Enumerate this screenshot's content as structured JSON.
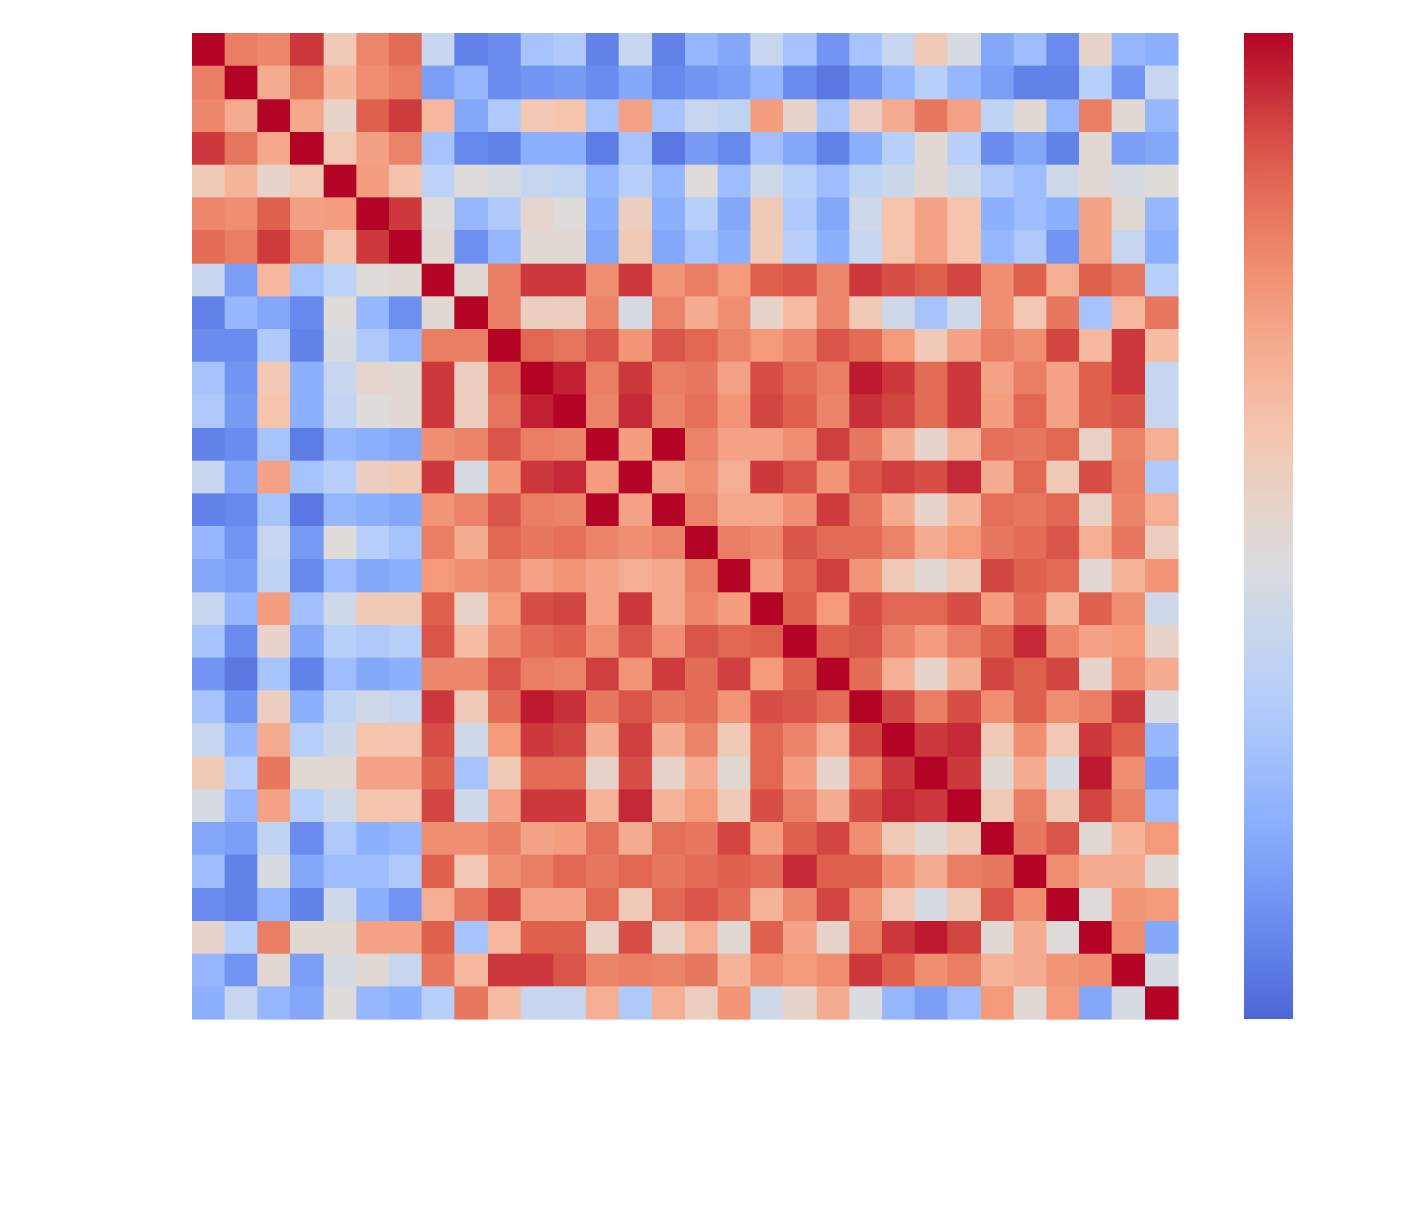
{
  "chart_data": {
    "type": "heatmap",
    "title": "",
    "xlabel": "",
    "ylabel": "",
    "n": 30,
    "x_tick_labels": [],
    "y_tick_labels": [],
    "color_range": [
      -1,
      1
    ],
    "colormap": "coolwarm",
    "colorbar": {
      "visible": true,
      "placement": "right",
      "tick_labels": []
    },
    "cells": [
      [
        1.0,
        0.62,
        0.58,
        0.86,
        0.2,
        0.58,
        0.7,
        -0.15,
        -0.75,
        -0.7,
        -0.35,
        -0.3,
        -0.75,
        -0.15,
        -0.75,
        -0.45,
        -0.55,
        -0.15,
        -0.35,
        -0.65,
        -0.35,
        -0.15,
        0.2,
        -0.05,
        -0.55,
        -0.4,
        -0.7,
        0.1,
        -0.45,
        -0.5
      ],
      [
        0.62,
        1.0,
        0.4,
        0.66,
        0.34,
        0.55,
        0.62,
        -0.6,
        -0.45,
        -0.7,
        -0.65,
        -0.62,
        -0.7,
        -0.55,
        -0.72,
        -0.65,
        -0.6,
        -0.45,
        -0.7,
        -0.8,
        -0.65,
        -0.45,
        -0.25,
        -0.45,
        -0.6,
        -0.75,
        -0.75,
        -0.25,
        -0.65,
        -0.15
      ],
      [
        0.58,
        0.4,
        1.0,
        0.42,
        0.1,
        0.75,
        0.85,
        0.32,
        -0.55,
        -0.3,
        0.22,
        0.25,
        -0.35,
        0.45,
        -0.35,
        -0.15,
        -0.2,
        0.48,
        0.1,
        -0.35,
        0.15,
        0.4,
        0.65,
        0.45,
        -0.2,
        0.05,
        -0.45,
        0.62,
        0.05,
        -0.45
      ],
      [
        0.86,
        0.66,
        0.42,
        1.0,
        0.22,
        0.46,
        0.6,
        -0.35,
        -0.72,
        -0.75,
        -0.5,
        -0.5,
        -0.78,
        -0.35,
        -0.8,
        -0.62,
        -0.72,
        -0.38,
        -0.55,
        -0.75,
        -0.5,
        -0.25,
        0.05,
        -0.25,
        -0.7,
        -0.55,
        -0.75,
        0.05,
        -0.6,
        -0.55
      ],
      [
        0.2,
        0.34,
        0.1,
        0.22,
        1.0,
        0.48,
        0.26,
        -0.22,
        0.02,
        -0.05,
        -0.15,
        -0.18,
        -0.45,
        -0.25,
        -0.45,
        0.02,
        -0.4,
        -0.1,
        -0.25,
        -0.4,
        -0.2,
        -0.12,
        0.05,
        -0.1,
        -0.3,
        -0.4,
        -0.1,
        0.05,
        -0.05,
        0.02
      ],
      [
        0.58,
        0.55,
        0.75,
        0.46,
        0.48,
        1.0,
        0.86,
        0.02,
        -0.45,
        -0.3,
        0.08,
        0.02,
        -0.5,
        0.15,
        -0.5,
        -0.25,
        -0.55,
        0.2,
        -0.3,
        -0.55,
        -0.1,
        0.25,
        0.45,
        0.25,
        -0.5,
        -0.4,
        -0.5,
        0.45,
        0.05,
        -0.45
      ],
      [
        0.7,
        0.62,
        0.85,
        0.6,
        0.26,
        0.86,
        1.0,
        0.05,
        -0.68,
        -0.45,
        0.05,
        0.05,
        -0.55,
        0.2,
        -0.55,
        -0.35,
        -0.5,
        0.2,
        -0.25,
        -0.5,
        -0.15,
        0.25,
        0.45,
        0.25,
        -0.45,
        -0.3,
        -0.65,
        0.45,
        -0.15,
        -0.5
      ],
      [
        -0.15,
        -0.6,
        0.32,
        -0.35,
        -0.22,
        0.02,
        0.05,
        1.0,
        0.05,
        0.62,
        0.86,
        0.86,
        0.55,
        0.86,
        0.52,
        0.62,
        0.5,
        0.75,
        0.78,
        0.58,
        0.86,
        0.8,
        0.75,
        0.82,
        0.55,
        0.75,
        0.38,
        0.75,
        0.65,
        -0.25
      ],
      [
        -0.75,
        -0.45,
        -0.55,
        -0.72,
        0.02,
        -0.45,
        -0.68,
        0.05,
        1.0,
        0.62,
        0.15,
        0.15,
        0.6,
        -0.05,
        0.6,
        0.4,
        0.55,
        0.1,
        0.3,
        0.58,
        0.2,
        -0.1,
        -0.35,
        -0.1,
        0.55,
        0.22,
        0.65,
        -0.35,
        0.32,
        0.65
      ],
      [
        -0.7,
        -0.7,
        -0.3,
        -0.75,
        -0.05,
        -0.3,
        -0.45,
        0.62,
        0.62,
        1.0,
        0.72,
        0.66,
        0.78,
        0.52,
        0.78,
        0.72,
        0.6,
        0.5,
        0.58,
        0.78,
        0.7,
        0.5,
        0.2,
        0.45,
        0.62,
        0.55,
        0.82,
        0.32,
        0.86,
        0.3
      ],
      [
        -0.35,
        -0.65,
        0.22,
        -0.5,
        -0.15,
        0.08,
        0.05,
        0.86,
        0.15,
        0.72,
        1.0,
        0.92,
        0.62,
        0.86,
        0.62,
        0.65,
        0.45,
        0.8,
        0.7,
        0.62,
        0.94,
        0.86,
        0.7,
        0.86,
        0.45,
        0.62,
        0.45,
        0.75,
        0.86,
        -0.15
      ],
      [
        -0.3,
        -0.62,
        0.25,
        -0.5,
        -0.18,
        0.02,
        0.05,
        0.86,
        0.15,
        0.66,
        0.92,
        1.0,
        0.6,
        0.9,
        0.6,
        0.68,
        0.52,
        0.82,
        0.75,
        0.6,
        0.88,
        0.82,
        0.7,
        0.86,
        0.48,
        0.72,
        0.45,
        0.75,
        0.78,
        -0.15
      ],
      [
        -0.75,
        -0.7,
        -0.35,
        -0.78,
        -0.45,
        -0.5,
        -0.55,
        0.55,
        0.6,
        0.78,
        0.62,
        0.6,
        1.0,
        0.48,
        1.0,
        0.6,
        0.45,
        0.45,
        0.55,
        0.84,
        0.65,
        0.4,
        0.1,
        0.35,
        0.68,
        0.65,
        0.72,
        0.12,
        0.6,
        0.38
      ],
      [
        -0.15,
        -0.55,
        0.45,
        -0.35,
        -0.25,
        0.15,
        0.2,
        0.86,
        -0.05,
        0.52,
        0.86,
        0.9,
        0.48,
        1.0,
        0.45,
        0.55,
        0.38,
        0.86,
        0.78,
        0.52,
        0.78,
        0.84,
        0.8,
        0.9,
        0.4,
        0.72,
        0.2,
        0.8,
        0.62,
        -0.3
      ],
      [
        -0.75,
        -0.72,
        -0.35,
        -0.8,
        -0.45,
        -0.5,
        -0.55,
        0.52,
        0.6,
        0.78,
        0.62,
        0.6,
        1.0,
        0.45,
        1.0,
        0.6,
        0.42,
        0.42,
        0.55,
        0.85,
        0.65,
        0.4,
        0.1,
        0.35,
        0.68,
        0.65,
        0.72,
        0.12,
        0.6,
        0.38
      ],
      [
        -0.45,
        -0.65,
        -0.15,
        -0.62,
        0.02,
        -0.25,
        -0.35,
        0.62,
        0.4,
        0.72,
        0.65,
        0.68,
        0.6,
        0.55,
        0.6,
        1.0,
        0.62,
        0.58,
        0.78,
        0.7,
        0.7,
        0.6,
        0.4,
        0.5,
        0.65,
        0.7,
        0.78,
        0.38,
        0.65,
        0.15
      ],
      [
        -0.55,
        -0.6,
        -0.2,
        -0.72,
        -0.4,
        -0.55,
        -0.5,
        0.5,
        0.55,
        0.6,
        0.45,
        0.52,
        0.45,
        0.38,
        0.42,
        0.62,
        1.0,
        0.48,
        0.72,
        0.84,
        0.52,
        0.2,
        0.05,
        0.2,
        0.82,
        0.75,
        0.7,
        0.05,
        0.35,
        0.52
      ],
      [
        -0.15,
        -0.45,
        0.48,
        -0.38,
        -0.1,
        0.2,
        0.2,
        0.75,
        0.1,
        0.5,
        0.8,
        0.82,
        0.45,
        0.86,
        0.42,
        0.58,
        0.48,
        1.0,
        0.75,
        0.5,
        0.8,
        0.72,
        0.72,
        0.8,
        0.48,
        0.7,
        0.35,
        0.75,
        0.55,
        -0.1
      ],
      [
        -0.35,
        -0.7,
        0.1,
        -0.55,
        -0.25,
        -0.3,
        -0.25,
        0.78,
        0.3,
        0.58,
        0.7,
        0.75,
        0.55,
        0.78,
        0.55,
        0.78,
        0.72,
        0.75,
        1.0,
        0.75,
        0.78,
        0.6,
        0.48,
        0.62,
        0.75,
        0.9,
        0.58,
        0.45,
        0.5,
        0.1
      ],
      [
        -0.65,
        -0.8,
        -0.35,
        -0.75,
        -0.4,
        -0.55,
        -0.5,
        0.58,
        0.58,
        0.78,
        0.62,
        0.6,
        0.84,
        0.52,
        0.85,
        0.7,
        0.84,
        0.5,
        0.75,
        1.0,
        0.7,
        0.38,
        0.1,
        0.4,
        0.82,
        0.75,
        0.82,
        0.1,
        0.55,
        0.4
      ],
      [
        -0.35,
        -0.65,
        0.15,
        -0.5,
        -0.2,
        -0.1,
        -0.15,
        0.86,
        0.2,
        0.7,
        0.94,
        0.88,
        0.65,
        0.78,
        0.65,
        0.7,
        0.52,
        0.8,
        0.78,
        0.7,
        1.0,
        0.82,
        0.62,
        0.8,
        0.55,
        0.75,
        0.55,
        0.62,
        0.86,
        -0.02
      ],
      [
        -0.15,
        -0.45,
        0.4,
        -0.25,
        -0.12,
        0.25,
        0.25,
        0.8,
        -0.1,
        0.5,
        0.86,
        0.82,
        0.4,
        0.84,
        0.4,
        0.6,
        0.2,
        0.72,
        0.6,
        0.38,
        0.82,
        1.0,
        0.86,
        0.9,
        0.2,
        0.55,
        0.22,
        0.86,
        0.75,
        -0.45
      ],
      [
        0.2,
        -0.25,
        0.65,
        0.05,
        0.05,
        0.45,
        0.45,
        0.75,
        -0.35,
        0.2,
        0.7,
        0.7,
        0.1,
        0.8,
        0.1,
        0.4,
        0.05,
        0.72,
        0.48,
        0.1,
        0.62,
        0.86,
        1.0,
        0.86,
        0.05,
        0.4,
        -0.05,
        0.94,
        0.55,
        -0.6
      ],
      [
        -0.05,
        -0.45,
        0.45,
        -0.25,
        -0.1,
        0.25,
        0.25,
        0.82,
        -0.1,
        0.45,
        0.86,
        0.86,
        0.35,
        0.9,
        0.35,
        0.5,
        0.2,
        0.8,
        0.62,
        0.4,
        0.8,
        0.9,
        0.86,
        1.0,
        0.2,
        0.62,
        0.2,
        0.82,
        0.62,
        -0.4
      ],
      [
        -0.55,
        -0.6,
        -0.2,
        -0.7,
        -0.3,
        -0.5,
        -0.45,
        0.55,
        0.55,
        0.62,
        0.45,
        0.48,
        0.68,
        0.4,
        0.68,
        0.65,
        0.82,
        0.48,
        0.75,
        0.82,
        0.55,
        0.2,
        0.05,
        0.2,
        1.0,
        0.65,
        0.78,
        0.05,
        0.35,
        0.5
      ],
      [
        -0.4,
        -0.75,
        -0.05,
        -0.55,
        -0.4,
        -0.4,
        -0.3,
        0.75,
        0.22,
        0.55,
        0.62,
        0.72,
        0.65,
        0.72,
        0.65,
        0.7,
        0.75,
        0.7,
        0.9,
        0.75,
        0.75,
        0.55,
        0.4,
        0.62,
        0.65,
        1.0,
        0.55,
        0.4,
        0.4,
        0.05
      ],
      [
        -0.7,
        -0.75,
        -0.45,
        -0.75,
        -0.1,
        -0.5,
        -0.65,
        0.38,
        0.65,
        0.82,
        0.45,
        0.45,
        0.72,
        0.2,
        0.72,
        0.78,
        0.7,
        0.35,
        0.58,
        0.82,
        0.55,
        0.22,
        -0.05,
        0.2,
        0.78,
        0.55,
        1.0,
        0.02,
        0.52,
        0.5
      ],
      [
        0.1,
        -0.25,
        0.62,
        0.05,
        0.05,
        0.45,
        0.45,
        0.75,
        -0.35,
        0.32,
        0.75,
        0.75,
        0.12,
        0.8,
        0.12,
        0.38,
        0.05,
        0.75,
        0.45,
        0.1,
        0.62,
        0.86,
        0.94,
        0.82,
        0.05,
        0.4,
        0.02,
        1.0,
        0.55,
        -0.55
      ],
      [
        -0.45,
        -0.65,
        0.05,
        -0.6,
        -0.05,
        0.05,
        -0.15,
        0.65,
        0.32,
        0.86,
        0.86,
        0.78,
        0.6,
        0.62,
        0.6,
        0.65,
        0.35,
        0.55,
        0.5,
        0.55,
        0.86,
        0.75,
        0.55,
        0.62,
        0.35,
        0.4,
        0.52,
        0.55,
        1.0,
        -0.05
      ],
      [
        -0.5,
        -0.15,
        -0.45,
        -0.55,
        0.02,
        -0.45,
        -0.5,
        -0.25,
        0.65,
        0.3,
        -0.15,
        -0.15,
        0.38,
        -0.3,
        0.38,
        0.15,
        0.52,
        -0.1,
        0.1,
        0.4,
        -0.02,
        -0.45,
        -0.6,
        -0.4,
        0.5,
        0.05,
        0.5,
        -0.55,
        -0.05,
        1.0
      ]
    ]
  }
}
